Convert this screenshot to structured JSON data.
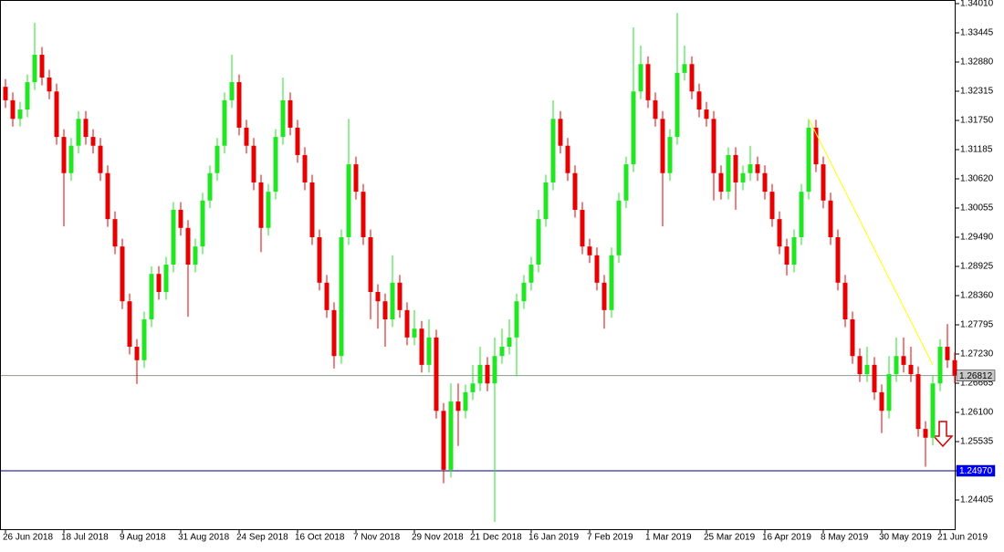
{
  "chart_data": {
    "type": "candlestick",
    "categories": [
      "26 Jun 2018",
      null,
      null,
      null,
      null,
      null,
      null,
      null,
      "18 Jul 2018",
      null,
      null,
      null,
      null,
      null,
      null,
      null,
      "9 Aug 2018",
      null,
      null,
      null,
      null,
      null,
      null,
      null,
      "31 Aug 2018",
      null,
      null,
      null,
      null,
      null,
      null,
      null,
      "24 Sep 2018",
      null,
      null,
      null,
      null,
      null,
      null,
      null,
      "16 Oct 2018",
      null,
      null,
      null,
      null,
      null,
      null,
      null,
      "7 Nov 2018",
      null,
      null,
      null,
      null,
      null,
      null,
      null,
      "29 Nov 2018",
      null,
      null,
      null,
      null,
      null,
      null,
      null,
      "21 Dec 2018",
      null,
      null,
      null,
      null,
      null,
      null,
      null,
      "16 Jan 2019",
      null,
      null,
      null,
      null,
      null,
      null,
      null,
      "7 Feb 2019",
      null,
      null,
      null,
      null,
      null,
      null,
      null,
      "1 Mar 2019",
      null,
      null,
      null,
      null,
      null,
      null,
      null,
      "25 Mar 2019",
      null,
      null,
      null,
      null,
      null,
      null,
      null,
      "16 Apr 2019",
      null,
      null,
      null,
      null,
      null,
      null,
      null,
      "8 May 2019",
      null,
      null,
      null,
      null,
      null,
      null,
      null,
      "30 May 2019",
      null,
      null,
      null,
      null,
      null,
      null,
      null,
      "21 Jun 2019",
      null,
      null
    ],
    "open": [
      1.324,
      1.3214,
      1.3178,
      1.3196,
      1.3249,
      1.3302,
      1.3258,
      1.3231,
      1.3143,
      1.3073,
      1.3126,
      1.3178,
      1.3143,
      1.3126,
      1.3073,
      1.2984,
      1.2931,
      1.2825,
      1.2737,
      1.2711,
      1.279,
      1.2878,
      1.2843,
      1.2896,
      1.3002,
      1.2967,
      1.2896,
      1.2931,
      1.302,
      1.3073,
      1.3126,
      1.3214,
      1.3249,
      1.3161,
      1.3126,
      1.3055,
      1.2967,
      1.3037,
      1.3143,
      1.3214,
      1.3161,
      1.3108,
      1.3055,
      1.2949,
      1.2861,
      1.2808,
      1.2719,
      1.2949,
      1.309,
      1.3037,
      1.2949,
      1.2843,
      1.2825,
      1.279,
      1.2861,
      1.2808,
      1.2755,
      1.2772,
      1.2702,
      1.2755,
      1.2613,
      1.2499,
      1.2631,
      1.2613,
      1.2649,
      1.2666,
      1.2702,
      1.2666,
      1.2719,
      1.2737,
      1.2755,
      1.2825,
      1.2861,
      1.2896,
      1.2984,
      1.3055,
      1.3178,
      1.3126,
      1.3073,
      1.3002,
      1.2931,
      1.2914,
      1.2861,
      1.2808,
      1.2914,
      1.302,
      1.309,
      1.3231,
      1.3284,
      1.3214,
      1.3178,
      1.3073,
      1.3143,
      1.3267,
      1.3284,
      1.3231,
      1.3196,
      1.3178,
      1.3073,
      1.3037,
      1.3108,
      1.3055,
      1.3073,
      1.309,
      1.3073,
      1.3037,
      1.2984,
      1.2931,
      1.2896,
      1.2949,
      1.3037,
      1.3161,
      1.309,
      1.302,
      1.2949,
      1.2861,
      1.279,
      1.2719,
      1.2684,
      1.2702,
      1.2649,
      1.2613,
      1.2684,
      1.2719,
      1.2702,
      1.2684,
      1.2578,
      1.2561,
      1.2666,
      1.2737,
      1.2711
    ],
    "high": [
      1.3255,
      1.3229,
      1.3211,
      1.3264,
      1.3364,
      1.3317,
      1.3273,
      1.3246,
      1.3158,
      1.3141,
      1.3193,
      1.3193,
      1.3158,
      1.3141,
      1.3088,
      1.2999,
      1.2946,
      1.284,
      1.2752,
      1.2805,
      1.2893,
      1.2893,
      1.2911,
      1.3017,
      1.3017,
      1.2982,
      1.2946,
      1.3035,
      1.3088,
      1.3141,
      1.3229,
      1.3302,
      1.3264,
      1.3176,
      1.3141,
      1.307,
      1.3052,
      1.3158,
      1.3258,
      1.3229,
      1.3176,
      1.3123,
      1.307,
      1.2964,
      1.2876,
      1.2823,
      1.2964,
      1.3178,
      1.3105,
      1.3052,
      1.2964,
      1.2858,
      1.284,
      1.2914,
      1.2876,
      1.2823,
      1.2808,
      1.2787,
      1.279,
      1.277,
      1.2628,
      1.2666,
      1.2666,
      1.2664,
      1.2702,
      1.2737,
      1.2717,
      1.2755,
      1.2772,
      1.279,
      1.284,
      1.2876,
      1.2911,
      1.3002,
      1.307,
      1.3214,
      1.3193,
      1.3141,
      1.3088,
      1.3017,
      1.2946,
      1.2929,
      1.2876,
      1.2929,
      1.3035,
      1.3105,
      1.3355,
      1.332,
      1.3299,
      1.3229,
      1.3193,
      1.3158,
      1.3383,
      1.332,
      1.3299,
      1.3246,
      1.3211,
      1.3193,
      1.3088,
      1.3123,
      1.3123,
      1.3088,
      1.3126,
      1.3105,
      1.3088,
      1.3052,
      1.2999,
      1.2946,
      1.2964,
      1.3052,
      1.3178,
      1.3176,
      1.3105,
      1.3035,
      1.2964,
      1.2876,
      1.2805,
      1.2734,
      1.2737,
      1.2717,
      1.2664,
      1.2719,
      1.2755,
      1.2755,
      1.2737,
      1.2699,
      1.2593,
      1.2681,
      1.2752,
      1.2781,
      1.2726
    ],
    "low": [
      1.3199,
      1.3163,
      1.3163,
      1.3181,
      1.3234,
      1.3243,
      1.3216,
      1.3128,
      1.297,
      1.3058,
      1.3111,
      1.3128,
      1.3111,
      1.3058,
      1.2969,
      1.2916,
      1.281,
      1.2722,
      1.2665,
      1.2696,
      1.2775,
      1.2828,
      1.2828,
      1.2881,
      1.2952,
      1.2795,
      1.2881,
      1.2916,
      1.3005,
      1.3058,
      1.3111,
      1.3199,
      1.3146,
      1.3111,
      1.304,
      1.292,
      1.2952,
      1.3022,
      1.3128,
      1.3146,
      1.3093,
      1.304,
      1.2934,
      1.2846,
      1.2793,
      1.2695,
      1.2704,
      1.2934,
      1.3022,
      1.2934,
      1.279,
      1.2772,
      1.2737,
      1.2775,
      1.2793,
      1.274,
      1.274,
      1.2687,
      1.2687,
      1.2598,
      1.2473,
      1.2484,
      1.2545,
      1.2598,
      1.2634,
      1.2651,
      1.2651,
      1.2398,
      1.2704,
      1.2722,
      1.268,
      1.281,
      1.2846,
      1.2881,
      1.2969,
      1.304,
      1.3111,
      1.3058,
      1.2987,
      1.2916,
      1.2899,
      1.2846,
      1.2772,
      1.2793,
      1.2899,
      1.3005,
      1.3075,
      1.3216,
      1.3199,
      1.3163,
      1.297,
      1.3058,
      1.3128,
      1.3252,
      1.3216,
      1.3181,
      1.3163,
      1.302,
      1.3022,
      1.3022,
      1.3002,
      1.304,
      1.3058,
      1.3058,
      1.3022,
      1.2969,
      1.2916,
      1.2875,
      1.2881,
      1.2934,
      1.3022,
      1.3075,
      1.3005,
      1.2934,
      1.2846,
      1.2775,
      1.2704,
      1.2669,
      1.2669,
      1.2634,
      1.257,
      1.2598,
      1.2669,
      1.2687,
      1.2669,
      1.2563,
      1.2505,
      1.2546,
      1.2651,
      1.2696,
      1.2666
    ],
    "close": [
      1.3214,
      1.3178,
      1.3196,
      1.3249,
      1.3302,
      1.3258,
      1.3231,
      1.3143,
      1.3073,
      1.3126,
      1.3178,
      1.3143,
      1.3126,
      1.3073,
      1.2984,
      1.2931,
      1.2825,
      1.2737,
      1.2711,
      1.279,
      1.2878,
      1.2843,
      1.2896,
      1.3002,
      1.2967,
      1.2896,
      1.2931,
      1.302,
      1.3073,
      1.3126,
      1.3214,
      1.3249,
      1.3161,
      1.3126,
      1.3055,
      1.2967,
      1.3037,
      1.3143,
      1.3214,
      1.3161,
      1.3108,
      1.3055,
      1.2949,
      1.2861,
      1.2808,
      1.2719,
      1.2949,
      1.309,
      1.3037,
      1.2949,
      1.2843,
      1.2825,
      1.279,
      1.2861,
      1.2808,
      1.2755,
      1.2772,
      1.2702,
      1.2755,
      1.2613,
      1.2499,
      1.2631,
      1.2613,
      1.2649,
      1.2666,
      1.2702,
      1.2666,
      1.2719,
      1.2737,
      1.2755,
      1.2825,
      1.2861,
      1.2896,
      1.2984,
      1.3055,
      1.3178,
      1.3126,
      1.3073,
      1.3002,
      1.2931,
      1.2914,
      1.2861,
      1.2808,
      1.2914,
      1.302,
      1.309,
      1.3231,
      1.3284,
      1.3214,
      1.3178,
      1.3073,
      1.3143,
      1.3267,
      1.3284,
      1.3231,
      1.3196,
      1.3178,
      1.3073,
      1.3037,
      1.3108,
      1.3055,
      1.3073,
      1.309,
      1.3073,
      1.3037,
      1.2984,
      1.2931,
      1.2896,
      1.2949,
      1.3037,
      1.3161,
      1.309,
      1.302,
      1.2949,
      1.2861,
      1.279,
      1.2719,
      1.2684,
      1.2702,
      1.2649,
      1.2613,
      1.2684,
      1.2719,
      1.2702,
      1.2684,
      1.2578,
      1.2561,
      1.2666,
      1.2737,
      1.2711,
      1.2681
    ],
    "up_color": "#22e622",
    "down_color": "#e60000",
    "ylim": [
      1.2384,
      1.3408
    ],
    "yticks": [
      {
        "value": 1.3401,
        "label": "1.34010"
      },
      1.33445,
      {
        "value": 1.3288,
        "label": "1.32880"
      },
      1.32315,
      {
        "value": 1.3175,
        "label": "1.31750"
      },
      1.31185,
      {
        "value": 1.3062,
        "label": "1.30620"
      },
      1.30055,
      {
        "value": 1.2949,
        "label": "1.29490"
      },
      1.28925,
      {
        "value": 1.2836,
        "label": "1.28360"
      },
      1.27795,
      {
        "value": 1.2723,
        "label": "1.27230"
      },
      1.26665,
      {
        "value": 1.261,
        "label": "1.26100"
      },
      1.25535,
      {
        "value": 1.2497,
        "label": "1.24970"
      },
      1.24405
    ],
    "lines": [
      {
        "value": 1.26812,
        "label": "1.26812",
        "color": "#8c9c8c",
        "box_color": "#c8c8c8",
        "text_color": "#000000"
      },
      {
        "value": 1.2497,
        "label": "1.24970",
        "color": "#000080",
        "box_color": "#0000ff",
        "text_color": "#ffffff"
      }
    ],
    "trendline": {
      "from": [
        110,
        1.3178
      ],
      "to": [
        127,
        1.2702
      ],
      "color": "#ffff00"
    }
  }
}
